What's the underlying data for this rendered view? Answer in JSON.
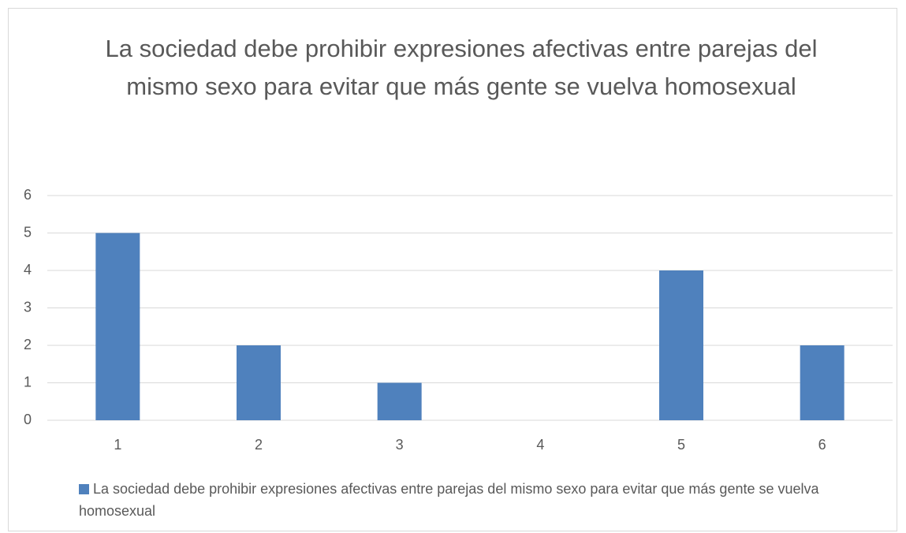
{
  "chart_data": {
    "type": "bar",
    "title": "La sociedad debe prohibir expresiones afectivas entre parejas del mismo sexo para evitar que más gente se vuelva homosexual",
    "categories": [
      "1",
      "2",
      "3",
      "4",
      "5",
      "6"
    ],
    "series": [
      {
        "name": "La sociedad debe prohibir expresiones afectivas entre parejas del mismo sexo para evitar que más gente se vuelva homosexual",
        "color": "#4f81bd",
        "values": [
          5,
          2,
          1,
          0,
          4,
          2
        ]
      }
    ],
    "ylim": [
      0,
      6
    ],
    "yticks": [
      0,
      1,
      2,
      3,
      4,
      5,
      6
    ],
    "grid": true,
    "legend": "bottom"
  }
}
